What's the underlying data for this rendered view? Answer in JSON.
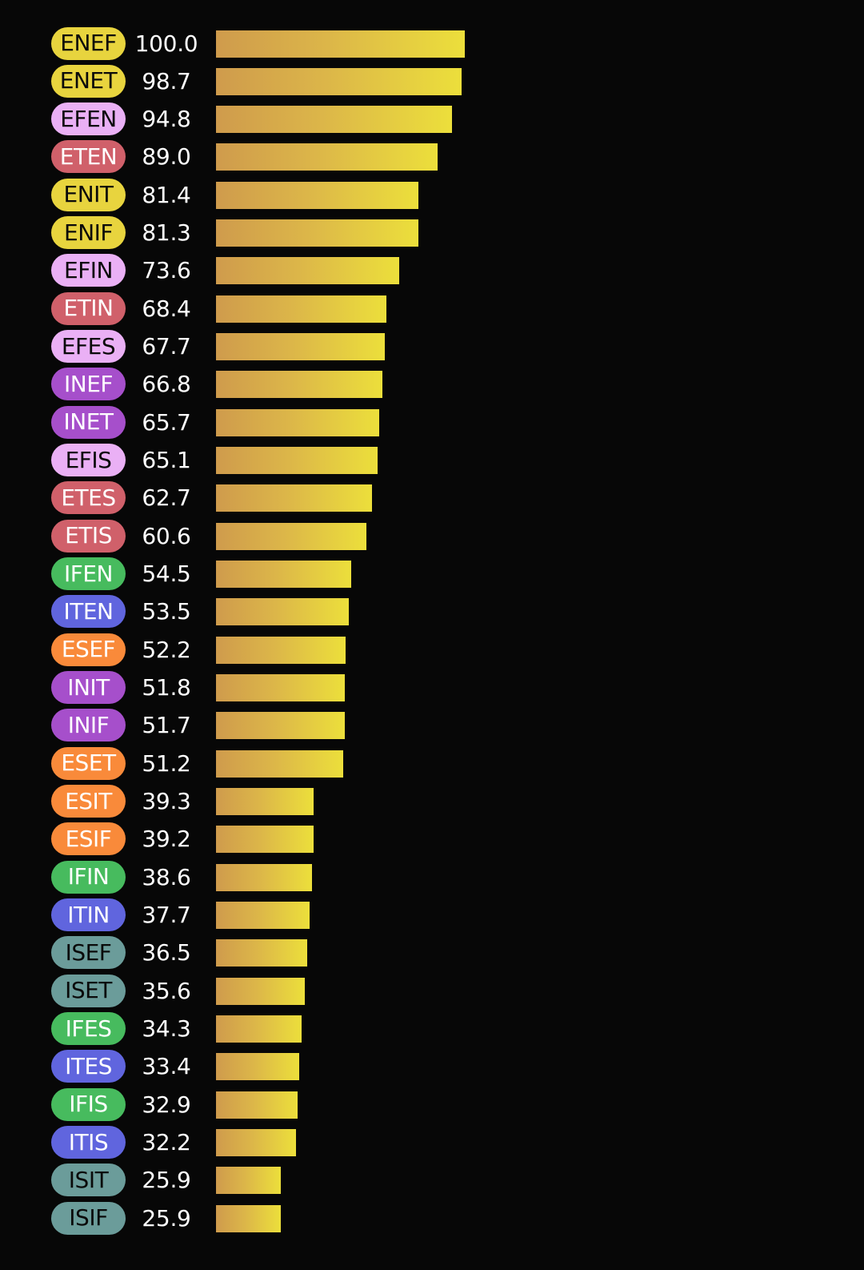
{
  "chart_data": {
    "type": "bar",
    "orientation": "horizontal",
    "categories": [
      "ENEF",
      "ENET",
      "EFEN",
      "ETEN",
      "ENIT",
      "ENIF",
      "EFIN",
      "ETIN",
      "EFES",
      "INEF",
      "INET",
      "EFIS",
      "ETES",
      "ETIS",
      "IFEN",
      "ITEN",
      "ESEF",
      "INIT",
      "INIF",
      "ESET",
      "ESIT",
      "ESIF",
      "IFIN",
      "ITIN",
      "ISEF",
      "ISET",
      "IFES",
      "ITES",
      "IFIS",
      "ITIS",
      "ISIT",
      "ISIF"
    ],
    "values": [
      100.0,
      98.7,
      94.8,
      89.0,
      81.4,
      81.3,
      73.6,
      68.4,
      67.7,
      66.8,
      65.7,
      65.1,
      62.7,
      60.6,
      54.5,
      53.5,
      52.2,
      51.8,
      51.7,
      51.2,
      39.3,
      39.2,
      38.6,
      37.7,
      36.5,
      35.6,
      34.3,
      33.4,
      32.9,
      32.2,
      25.9,
      25.9
    ],
    "value_labels": [
      "100.0",
      "98.7",
      "94.8",
      "89.0",
      "81.4",
      "81.3",
      "73.6",
      "68.4",
      "67.7",
      "66.8",
      "65.7",
      "65.1",
      "62.7",
      "60.6",
      "54.5",
      "53.5",
      "52.2",
      "51.8",
      "51.7",
      "51.2",
      "39.3",
      "39.2",
      "38.6",
      "37.7",
      "36.5",
      "35.6",
      "34.3",
      "33.4",
      "32.9",
      "32.2",
      "25.9",
      "25.9"
    ],
    "pill_colors": [
      "#e8d43e",
      "#e8d43e",
      "#eab0f5",
      "#d0606a",
      "#e8d43e",
      "#e8d43e",
      "#eab0f5",
      "#d0606a",
      "#eab0f5",
      "#a64fcb",
      "#a64fcb",
      "#eab0f5",
      "#d0606a",
      "#d0606a",
      "#47bb5e",
      "#6065de",
      "#f98a3a",
      "#a64fcb",
      "#a64fcb",
      "#f98a3a",
      "#f98a3a",
      "#f98a3a",
      "#47bb5e",
      "#6065de",
      "#6b9c9a",
      "#6b9c9a",
      "#47bb5e",
      "#6065de",
      "#47bb5e",
      "#6065de",
      "#6b9c9a",
      "#6b9c9a"
    ],
    "pill_text_colors": [
      "#0a0a0a",
      "#0a0a0a",
      "#0a0a0a",
      "#ffffff",
      "#0a0a0a",
      "#0a0a0a",
      "#0a0a0a",
      "#ffffff",
      "#0a0a0a",
      "#ffffff",
      "#ffffff",
      "#0a0a0a",
      "#ffffff",
      "#ffffff",
      "#ffffff",
      "#ffffff",
      "#ffffff",
      "#ffffff",
      "#ffffff",
      "#ffffff",
      "#ffffff",
      "#ffffff",
      "#ffffff",
      "#ffffff",
      "#0a0a0a",
      "#0a0a0a",
      "#ffffff",
      "#ffffff",
      "#ffffff",
      "#ffffff",
      "#0a0a0a",
      "#0a0a0a"
    ],
    "bar_gradient": [
      "#cf9b4c",
      "#ecdf3b"
    ],
    "xlim": [
      0,
      100
    ],
    "title": "",
    "xlabel": "",
    "ylabel": "",
    "grid": false,
    "legend": "none"
  }
}
